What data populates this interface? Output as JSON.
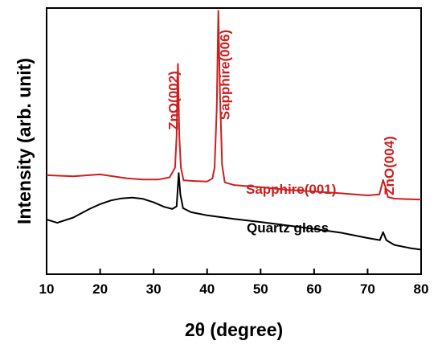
{
  "chart_data": {
    "type": "line",
    "xlabel": "2θ (degree)",
    "ylabel": "Intensity (arb. unit)",
    "xlim": [
      10,
      80
    ],
    "x_ticks": [
      10,
      20,
      30,
      40,
      50,
      60,
      70,
      80
    ],
    "y_ticks_shown": false,
    "grid": false,
    "legend": "none",
    "series": [
      {
        "name": "Sapphire(001)",
        "color": "#cc1f1f",
        "points": [
          [
            10,
            0.372
          ],
          [
            15,
            0.368
          ],
          [
            20,
            0.375
          ],
          [
            25,
            0.36
          ],
          [
            28,
            0.356
          ],
          [
            31,
            0.356
          ],
          [
            33,
            0.364
          ],
          [
            34.0,
            0.4
          ],
          [
            34.3,
            0.52
          ],
          [
            34.55,
            0.79
          ],
          [
            34.8,
            0.52
          ],
          [
            35.1,
            0.4
          ],
          [
            35.6,
            0.353
          ],
          [
            38,
            0.35
          ],
          [
            40,
            0.348
          ],
          [
            41.0,
            0.36
          ],
          [
            41.4,
            0.4
          ],
          [
            41.8,
            0.62
          ],
          [
            42.1,
            0.99
          ],
          [
            42.4,
            0.68
          ],
          [
            42.8,
            0.41
          ],
          [
            43.3,
            0.345
          ],
          [
            45,
            0.335
          ],
          [
            50,
            0.327
          ],
          [
            55,
            0.317
          ],
          [
            60,
            0.311
          ],
          [
            65,
            0.304
          ],
          [
            70,
            0.296
          ],
          [
            72.2,
            0.3
          ],
          [
            72.6,
            0.33
          ],
          [
            72.9,
            0.354
          ],
          [
            73.3,
            0.33
          ],
          [
            73.8,
            0.29
          ],
          [
            75,
            0.284
          ],
          [
            80,
            0.28
          ]
        ]
      },
      {
        "name": "Quartz glass",
        "color": "#000000",
        "points": [
          [
            10,
            0.205
          ],
          [
            12,
            0.193
          ],
          [
            15,
            0.213
          ],
          [
            18,
            0.245
          ],
          [
            20,
            0.263
          ],
          [
            22,
            0.277
          ],
          [
            24,
            0.285
          ],
          [
            26,
            0.288
          ],
          [
            28,
            0.283
          ],
          [
            30,
            0.27
          ],
          [
            32,
            0.253
          ],
          [
            33.5,
            0.245
          ],
          [
            34.3,
            0.255
          ],
          [
            34.7,
            0.38
          ],
          [
            35.0,
            0.3
          ],
          [
            35.5,
            0.248
          ],
          [
            37,
            0.233
          ],
          [
            40,
            0.221
          ],
          [
            45,
            0.208
          ],
          [
            50,
            0.196
          ],
          [
            55,
            0.183
          ],
          [
            60,
            0.17
          ],
          [
            65,
            0.156
          ],
          [
            70,
            0.136
          ],
          [
            72.3,
            0.128
          ],
          [
            72.9,
            0.158
          ],
          [
            73.5,
            0.128
          ],
          [
            75,
            0.11
          ],
          [
            78,
            0.098
          ],
          [
            80,
            0.092
          ]
        ]
      }
    ],
    "annotations": [
      {
        "text": "ZnO(002)",
        "x": 34.6,
        "rotation": -90,
        "color": "#cc1f1f"
      },
      {
        "text": "Sapphire(006)",
        "x": 42.6,
        "rotation": -90,
        "color": "#cc1f1f"
      },
      {
        "text": "ZnO(004)",
        "x": 73.3,
        "rotation": -90,
        "color": "#cc1f1f"
      },
      {
        "text": "Sapphire(001)",
        "color": "#cc1f1f"
      },
      {
        "text": "Quartz glass",
        "color": "#000000"
      }
    ]
  }
}
